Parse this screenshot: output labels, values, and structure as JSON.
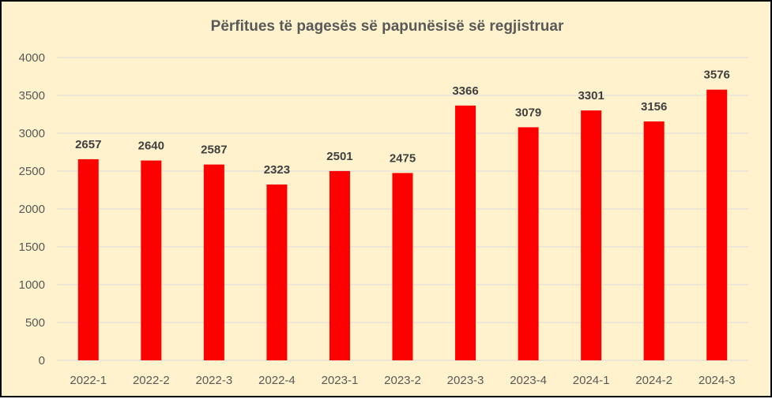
{
  "chart_data": {
    "type": "bar",
    "title": "Përfitues të pagesës së papunësisë së regjistruar",
    "xlabel": "",
    "ylabel": "",
    "categories": [
      "2022-1",
      "2022-2",
      "2022-3",
      "2022-4",
      "2023-1",
      "2023-2",
      "2023-3",
      "2023-4",
      "2024-1",
      "2024-2",
      "2024-3"
    ],
    "values": [
      2657,
      2640,
      2587,
      2323,
      2501,
      2475,
      3366,
      3079,
      3301,
      3156,
      3576
    ],
    "ylim": [
      0,
      4000
    ],
    "yticks": [
      0,
      500,
      1000,
      1500,
      2000,
      2500,
      3000,
      3500,
      4000
    ],
    "grid": true,
    "legend": "none",
    "colors": {
      "bar": "#ff0000",
      "background": "#fff2cc",
      "gridline": "#d9d9d9",
      "axis_text": "#595959",
      "data_label": "#404040"
    }
  }
}
